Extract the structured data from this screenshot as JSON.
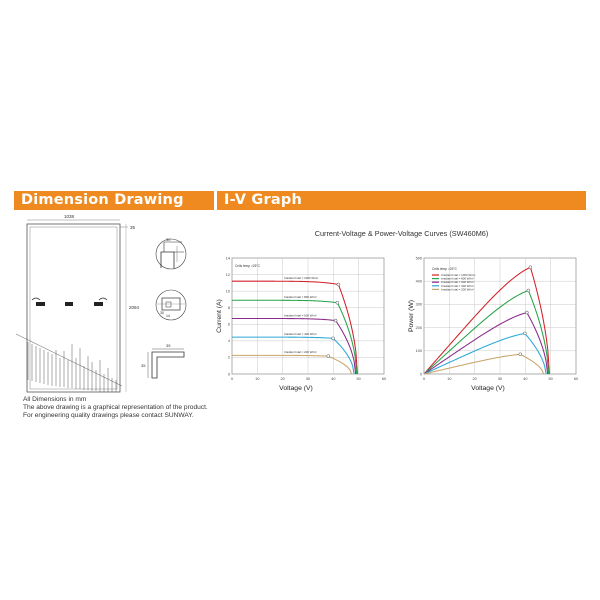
{
  "headers": {
    "dimension": "Dimension Drawing",
    "iv": "I-V Graph"
  },
  "drawing": {
    "width_label": "1038",
    "frame_label": "35",
    "height_label": "2094",
    "detail_a": "30",
    "detail_b1": "30",
    "detail_b2": "14",
    "detail_c1": "35",
    "detail_c2": "35"
  },
  "caption": {
    "line1": "All Dimensions in mm",
    "line2": "The above drawing is a graphical representation of the product.",
    "line3": "For engineering quality drawings please contact SUNWAY."
  },
  "iv_title": "Current-Voltage & Power-Voltage Curves (SW460M6)",
  "chart_data": [
    {
      "type": "line",
      "title": "",
      "annotation": "Cells temp =25°C",
      "xlabel": "Voltage  (V)",
      "ylabel": "Current  (A)",
      "xlim": [
        0,
        60
      ],
      "ylim": [
        0,
        14
      ],
      "xticks": [
        0,
        10,
        20,
        30,
        40,
        50,
        60
      ],
      "yticks": [
        0,
        2,
        4,
        6,
        8,
        10,
        12,
        14
      ],
      "voc": [
        49.5,
        49.2,
        48.8,
        48.2,
        47.2
      ],
      "series": [
        {
          "name": "Irradiant Intal = 1000 W/m²",
          "color": "#d42028",
          "isc": 11.2,
          "mpp_v": 42.0,
          "mpp_i": 10.8
        },
        {
          "name": "Irradiant Intal = 800 W/m²",
          "color": "#27a34a",
          "isc": 8.9,
          "mpp_v": 41.6,
          "mpp_i": 8.6
        },
        {
          "name": "Irradiant Intal = 600 W/m²",
          "color": "#8a2a8a",
          "isc": 6.7,
          "mpp_v": 40.9,
          "mpp_i": 6.45
        },
        {
          "name": "Irradiant Intal = 400 W/m²",
          "color": "#2aa7d6",
          "isc": 4.45,
          "mpp_v": 39.9,
          "mpp_i": 4.3
        },
        {
          "name": "Irradiant Intal = 200 W/m²",
          "color": "#c8a56a",
          "isc": 2.25,
          "mpp_v": 38.0,
          "mpp_i": 2.15
        }
      ]
    },
    {
      "type": "line",
      "title": "",
      "annotation": "Cells temp =25°C",
      "xlabel": "Voltage  (V)",
      "ylabel": "Power  (W)",
      "xlim": [
        0,
        60
      ],
      "ylim": [
        0,
        500
      ],
      "xticks": [
        0,
        10,
        20,
        30,
        40,
        50,
        60
      ],
      "yticks": [
        0,
        100,
        200,
        300,
        400,
        500
      ],
      "voc": [
        49.5,
        49.2,
        48.8,
        48.2,
        47.2
      ],
      "series": [
        {
          "name": "Irradiant Intal = 1000 W/m²",
          "color": "#d42028",
          "mpp_v": 42.0,
          "mpp_p": 460
        },
        {
          "name": "Irradiant Intal = 800 W/m²",
          "color": "#27a34a",
          "mpp_v": 41.2,
          "mpp_p": 360
        },
        {
          "name": "Irradiant Intal = 600 W/m²",
          "color": "#8a2a8a",
          "mpp_v": 40.6,
          "mpp_p": 265
        },
        {
          "name": "Irradiant Intal = 400 W/m²",
          "color": "#2aa7d6",
          "mpp_v": 39.8,
          "mpp_p": 175
        },
        {
          "name": "Irradiant Intal = 200 W/m²",
          "color": "#c8a56a",
          "mpp_v": 38.0,
          "mpp_p": 85
        }
      ]
    }
  ]
}
